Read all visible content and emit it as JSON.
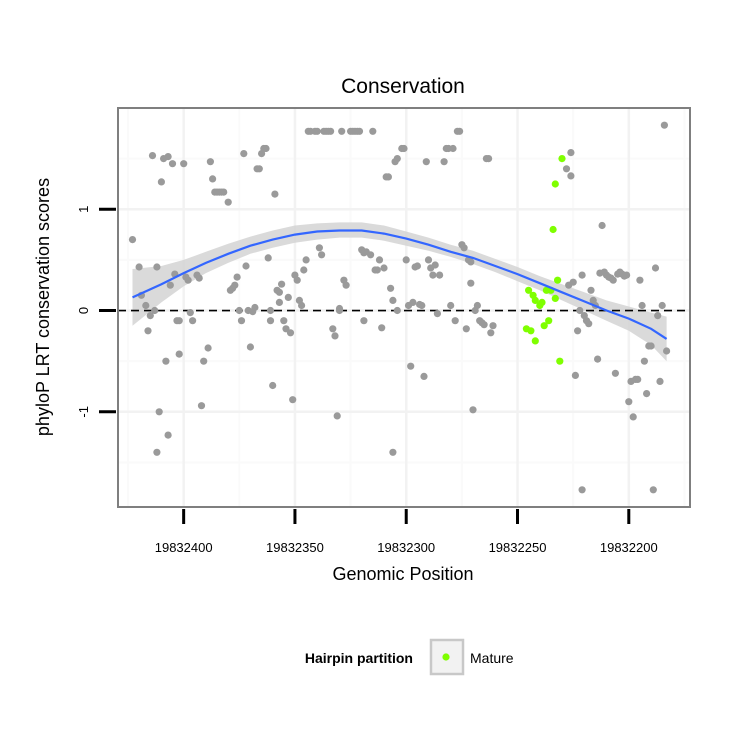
{
  "chart_data": {
    "type": "scatter",
    "title": "Conservation",
    "xlabel": "Genomic Position",
    "ylabel": "phyloP LRT conservation scores",
    "x_reversed": true,
    "xlim": [
      19832172.5,
      19832429.5
    ],
    "ylim": [
      -1.94,
      2.0
    ],
    "x_ticks": [
      19832400,
      19832350,
      19832300,
      19832250,
      19832200
    ],
    "x_tick_labels": [
      "19832400",
      "19832350",
      "19832300",
      "19832250",
      "19832200"
    ],
    "y_ticks": [
      -1,
      0,
      1
    ],
    "y_tick_labels": [
      "-1",
      "0",
      "1"
    ],
    "grid": true,
    "reference_line": {
      "y": 0,
      "style": "dashed",
      "color": "#000000"
    },
    "legend": {
      "title": "Hairpin partition",
      "position": "bottom",
      "entries": [
        {
          "label": "Mature",
          "color": "#7fff00"
        }
      ]
    },
    "colors": {
      "points": "#9a9a9a",
      "mature": "#7fff00",
      "smooth_line": "#3366ff",
      "smooth_band": "#d3d3d3",
      "grid_major": "#f2f2f2",
      "grid_minor": "#fafafa",
      "panel_border": "#7f7f7f"
    },
    "series": [
      {
        "name": "Mature",
        "points": [
          [
            19832245,
            0.2
          ],
          [
            19832243,
            0.15
          ],
          [
            19832242,
            0.1
          ],
          [
            19832240,
            0.05
          ],
          [
            19832244,
            -0.2
          ],
          [
            19832238,
            -0.15
          ],
          [
            19832236,
            -0.1
          ],
          [
            19832246,
            -0.18
          ],
          [
            19832242,
            -0.3
          ],
          [
            19832237,
            0.2
          ],
          [
            19832235,
            0.2
          ],
          [
            19832233,
            0.12
          ],
          [
            19832232,
            0.3
          ],
          [
            19832234,
            0.8
          ],
          [
            19832233,
            1.25
          ],
          [
            19832230,
            1.5
          ],
          [
            19832231,
            -0.5
          ],
          [
            19832239,
            0.08
          ]
        ]
      },
      {
        "name": "",
        "points": [
          [
            19832423,
            0.7
          ],
          [
            19832420,
            0.43
          ],
          [
            19832419,
            0.15
          ],
          [
            19832417,
            0.05
          ],
          [
            19832415,
            -0.05
          ],
          [
            19832413,
            0.0
          ],
          [
            19832416,
            -0.2
          ],
          [
            19832412,
            0.43
          ],
          [
            19832414,
            1.53
          ],
          [
            19832410,
            1.27
          ],
          [
            19832409,
            1.5
          ],
          [
            19832407,
            1.52
          ],
          [
            19832405,
            1.45
          ],
          [
            19832411,
            -1.0
          ],
          [
            19832412,
            -1.4
          ],
          [
            19832408,
            -0.5
          ],
          [
            19832407,
            -1.23
          ],
          [
            19832406,
            0.25
          ],
          [
            19832404,
            0.36
          ],
          [
            19832403,
            -0.1
          ],
          [
            19832402,
            -0.43
          ],
          [
            19832402,
            -0.1
          ],
          [
            19832400,
            1.45
          ],
          [
            19832399,
            0.33
          ],
          [
            19832398,
            0.3
          ],
          [
            19832397,
            -0.02
          ],
          [
            19832396,
            -0.1
          ],
          [
            19832394,
            0.35
          ],
          [
            19832393,
            0.32
          ],
          [
            19832392,
            -0.94
          ],
          [
            19832391,
            -0.5
          ],
          [
            19832389,
            -0.37
          ],
          [
            19832388,
            1.47
          ],
          [
            19832387,
            1.3
          ],
          [
            19832386,
            1.17
          ],
          [
            19832385,
            1.17
          ],
          [
            19832384,
            1.17
          ],
          [
            19832383,
            1.17
          ],
          [
            19832382,
            1.17
          ],
          [
            19832380,
            1.07
          ],
          [
            19832379,
            0.2
          ],
          [
            19832378,
            0.22
          ],
          [
            19832377,
            0.25
          ],
          [
            19832376,
            0.33
          ],
          [
            19832375,
            0.0
          ],
          [
            19832374,
            -0.1
          ],
          [
            19832373,
            1.55
          ],
          [
            19832372,
            0.44
          ],
          [
            19832371,
            0.0
          ],
          [
            19832370,
            -0.36
          ],
          [
            19832369,
            -0.01
          ],
          [
            19832368,
            0.03
          ],
          [
            19832367,
            1.4
          ],
          [
            19832366,
            1.4
          ],
          [
            19832365,
            1.55
          ],
          [
            19832364,
            1.6
          ],
          [
            19832363,
            1.6
          ],
          [
            19832362,
            0.52
          ],
          [
            19832361,
            -0.1
          ],
          [
            19832361,
            0.0
          ],
          [
            19832360,
            -0.74
          ],
          [
            19832359,
            1.15
          ],
          [
            19832358,
            0.2
          ],
          [
            19832357,
            0.18
          ],
          [
            19832357,
            0.08
          ],
          [
            19832356,
            0.26
          ],
          [
            19832355,
            -0.1
          ],
          [
            19832354,
            -0.18
          ],
          [
            19832353,
            0.13
          ],
          [
            19832352,
            -0.22
          ],
          [
            19832351,
            -0.88
          ],
          [
            19832350,
            0.35
          ],
          [
            19832349,
            0.3
          ],
          [
            19832348,
            0.1
          ],
          [
            19832347,
            0.05
          ],
          [
            19832346,
            0.4
          ],
          [
            19832345,
            0.5
          ],
          [
            19832344,
            1.77
          ],
          [
            19832343,
            1.77
          ],
          [
            19832341,
            1.77
          ],
          [
            19832340,
            1.77
          ],
          [
            19832339,
            0.62
          ],
          [
            19832338,
            0.55
          ],
          [
            19832337,
            1.77
          ],
          [
            19832336,
            1.77
          ],
          [
            19832335,
            1.77
          ],
          [
            19832334,
            1.77
          ],
          [
            19832333,
            -0.18
          ],
          [
            19832332,
            -0.25
          ],
          [
            19832331,
            -1.04
          ],
          [
            19832330,
            0.0
          ],
          [
            19832330,
            0.02
          ],
          [
            19832329,
            1.77
          ],
          [
            19832328,
            0.3
          ],
          [
            19832327,
            0.25
          ],
          [
            19832325,
            1.77
          ],
          [
            19832324,
            1.77
          ],
          [
            19832323,
            1.77
          ],
          [
            19832322,
            1.77
          ],
          [
            19832321,
            1.77
          ],
          [
            19832320,
            0.6
          ],
          [
            19832319,
            -0.1
          ],
          [
            19832319,
            0.57
          ],
          [
            19832318,
            0.58
          ],
          [
            19832316,
            0.55
          ],
          [
            19832315,
            1.77
          ],
          [
            19832314,
            0.4
          ],
          [
            19832313,
            0.4
          ],
          [
            19832312,
            0.5
          ],
          [
            19832311,
            -0.17
          ],
          [
            19832310,
            0.42
          ],
          [
            19832309,
            1.32
          ],
          [
            19832308,
            1.32
          ],
          [
            19832307,
            0.22
          ],
          [
            19832306,
            0.1
          ],
          [
            19832306,
            -1.4
          ],
          [
            19832305,
            1.47
          ],
          [
            19832304,
            0.0
          ],
          [
            19832304,
            1.5
          ],
          [
            19832302,
            1.6
          ],
          [
            19832301,
            1.6
          ],
          [
            19832300,
            0.5
          ],
          [
            19832299,
            0.05
          ],
          [
            19832298,
            -0.55
          ],
          [
            19832297,
            0.08
          ],
          [
            19832296,
            0.43
          ],
          [
            19832295,
            0.44
          ],
          [
            19832294,
            0.06
          ],
          [
            19832293,
            0.05
          ],
          [
            19832292,
            -0.65
          ],
          [
            19832291,
            1.47
          ],
          [
            19832290,
            0.5
          ],
          [
            19832289,
            0.42
          ],
          [
            19832288,
            0.35
          ],
          [
            19832287,
            0.45
          ],
          [
            19832286,
            -0.03
          ],
          [
            19832285,
            0.35
          ],
          [
            19832283,
            1.47
          ],
          [
            19832282,
            1.6
          ],
          [
            19832281,
            1.6
          ],
          [
            19832280,
            0.05
          ],
          [
            19832279,
            1.6
          ],
          [
            19832278,
            -0.1
          ],
          [
            19832277,
            1.77
          ],
          [
            19832276,
            1.77
          ],
          [
            19832275,
            0.65
          ],
          [
            19832274,
            0.62
          ],
          [
            19832273,
            -0.18
          ],
          [
            19832272,
            0.5
          ],
          [
            19832271,
            0.48
          ],
          [
            19832271,
            0.27
          ],
          [
            19832270,
            -0.98
          ],
          [
            19832269,
            0.0
          ],
          [
            19832268,
            0.05
          ],
          [
            19832267,
            -0.1
          ],
          [
            19832266,
            -0.12
          ],
          [
            19832265,
            -0.14
          ],
          [
            19832264,
            1.5
          ],
          [
            19832263,
            1.5
          ],
          [
            19832262,
            -0.22
          ],
          [
            19832261,
            -0.15
          ],
          [
            19832228,
            1.4
          ],
          [
            19832226,
            1.33
          ],
          [
            19832227,
            0.25
          ],
          [
            19832226,
            1.56
          ],
          [
            19832225,
            0.28
          ],
          [
            19832224,
            -0.64
          ],
          [
            19832223,
            -0.2
          ],
          [
            19832222,
            0.0
          ],
          [
            19832221,
            0.35
          ],
          [
            19832221,
            -1.77
          ],
          [
            19832220,
            -0.05
          ],
          [
            19832219,
            -0.1
          ],
          [
            19832218,
            -0.13
          ],
          [
            19832217,
            0.2
          ],
          [
            19832216,
            0.1
          ],
          [
            19832215,
            0.05
          ],
          [
            19832214,
            -0.48
          ],
          [
            19832213,
            0.37
          ],
          [
            19832212,
            0.84
          ],
          [
            19832211,
            0.38
          ],
          [
            19832210,
            0.35
          ],
          [
            19832209,
            0.33
          ],
          [
            19832208,
            0.32
          ],
          [
            19832207,
            0.3
          ],
          [
            19832206,
            -0.62
          ],
          [
            19832205,
            0.36
          ],
          [
            19832204,
            0.38
          ],
          [
            19832203,
            0.36
          ],
          [
            19832202,
            0.34
          ],
          [
            19832201,
            0.35
          ],
          [
            19832200,
            -0.9
          ],
          [
            19832199,
            -0.7
          ],
          [
            19832198,
            -1.05
          ],
          [
            19832197,
            -0.68
          ],
          [
            19832196,
            -0.68
          ],
          [
            19832195,
            0.3
          ],
          [
            19832194,
            0.05
          ],
          [
            19832193,
            -0.5
          ],
          [
            19832192,
            -0.82
          ],
          [
            19832191,
            -0.35
          ],
          [
            19832190,
            -0.35
          ],
          [
            19832189,
            -1.77
          ],
          [
            19832188,
            0.42
          ],
          [
            19832187,
            -0.05
          ],
          [
            19832186,
            -0.7
          ],
          [
            19832185,
            0.05
          ],
          [
            19832184,
            1.83
          ],
          [
            19832183,
            -0.4
          ]
        ]
      }
    ],
    "smooth": {
      "x": [
        19832423,
        19832410,
        19832400,
        19832390,
        19832380,
        19832370,
        19832360,
        19832350,
        19832340,
        19832330,
        19832320,
        19832310,
        19832300,
        19832290,
        19832280,
        19832270,
        19832260,
        19832250,
        19832240,
        19832230,
        19832220,
        19832210,
        19832200,
        19832190,
        19832183
      ],
      "y": [
        0.13,
        0.26,
        0.37,
        0.47,
        0.56,
        0.64,
        0.7,
        0.75,
        0.78,
        0.79,
        0.79,
        0.76,
        0.71,
        0.65,
        0.58,
        0.52,
        0.44,
        0.36,
        0.27,
        0.18,
        0.09,
        0.0,
        -0.08,
        -0.18,
        -0.28
      ],
      "lower": [
        -0.15,
        0.08,
        0.24,
        0.37,
        0.47,
        0.56,
        0.62,
        0.67,
        0.7,
        0.72,
        0.72,
        0.69,
        0.64,
        0.59,
        0.53,
        0.46,
        0.38,
        0.29,
        0.2,
        0.1,
        0.0,
        -0.1,
        -0.2,
        -0.34,
        -0.5
      ],
      "upper": [
        0.41,
        0.44,
        0.5,
        0.58,
        0.66,
        0.73,
        0.79,
        0.84,
        0.86,
        0.87,
        0.87,
        0.84,
        0.78,
        0.72,
        0.65,
        0.59,
        0.51,
        0.43,
        0.34,
        0.26,
        0.18,
        0.1,
        0.04,
        -0.02,
        -0.06
      ]
    }
  }
}
